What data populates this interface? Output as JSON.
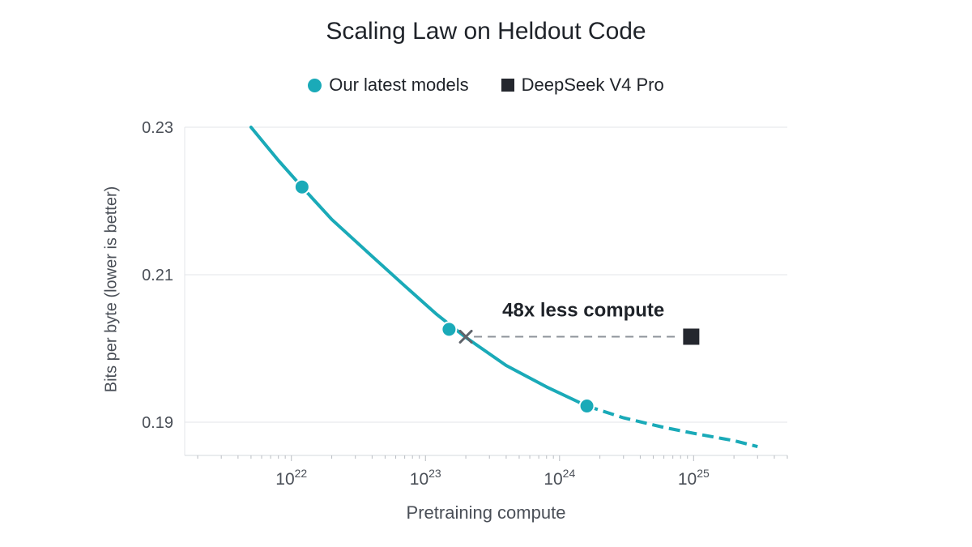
{
  "chart_data": {
    "type": "line",
    "title": "Scaling Law on Heldout Code",
    "xlabel": "Pretraining compute",
    "ylabel": "Bits per byte (lower is better)",
    "x_scale": "log",
    "xlim": [
      1.6e+21,
      5e+25
    ],
    "ylim": [
      0.1855,
      0.23
    ],
    "grid": "horizontal",
    "legend_position": "top-center",
    "x_ticks": [
      {
        "value": 1e+22,
        "base": "10",
        "exp": "22"
      },
      {
        "value": 1e+23,
        "base": "10",
        "exp": "23"
      },
      {
        "value": 1e+24,
        "base": "10",
        "exp": "24"
      },
      {
        "value": 1e+25,
        "base": "10",
        "exp": "25"
      }
    ],
    "y_ticks": [
      {
        "value": 0.23,
        "label": "0.23"
      },
      {
        "value": 0.21,
        "label": "0.21"
      },
      {
        "value": 0.19,
        "label": "0.19"
      }
    ],
    "series": [
      {
        "name": "Our latest models",
        "marker": "circle",
        "color": "#1aaab8",
        "fit_curve_solid": [
          [
            5e+21,
            0.23
          ],
          [
            8e+21,
            0.2255
          ],
          [
            1.2e+22,
            0.2219
          ],
          [
            2e+22,
            0.2175
          ],
          [
            4e+22,
            0.2125
          ],
          [
            7e+22,
            0.2085
          ],
          [
            1.2e+23,
            0.2047
          ],
          [
            2e+23,
            0.2015
          ],
          [
            4e+23,
            0.1977
          ],
          [
            8e+23,
            0.1948
          ],
          [
            1.6e+24,
            0.1922
          ]
        ],
        "fit_curve_dashed": [
          [
            1.6e+24,
            0.1922
          ],
          [
            3e+24,
            0.1906
          ],
          [
            6e+24,
            0.1893
          ],
          [
            1e+25,
            0.1885
          ],
          [
            2e+25,
            0.1875
          ],
          [
            3e+25,
            0.1867
          ]
        ],
        "points": [
          {
            "x": 1.2e+22,
            "y": 0.2219
          },
          {
            "x": 1.5e+23,
            "y": 0.2026
          },
          {
            "x": 1.6e+24,
            "y": 0.1922
          }
        ]
      },
      {
        "name": "DeepSeek V4 Pro",
        "marker": "square",
        "color": "#24272e",
        "points": [
          {
            "x": 9.6e+24,
            "y": 0.2016
          }
        ]
      }
    ],
    "annotations": [
      {
        "text": "48x less compute",
        "from": {
          "x": 2e+23,
          "y": 0.2016
        },
        "to": {
          "x": 9.6e+24,
          "y": 0.2016
        },
        "line_style": "dashed",
        "start_marker": "x"
      }
    ]
  }
}
